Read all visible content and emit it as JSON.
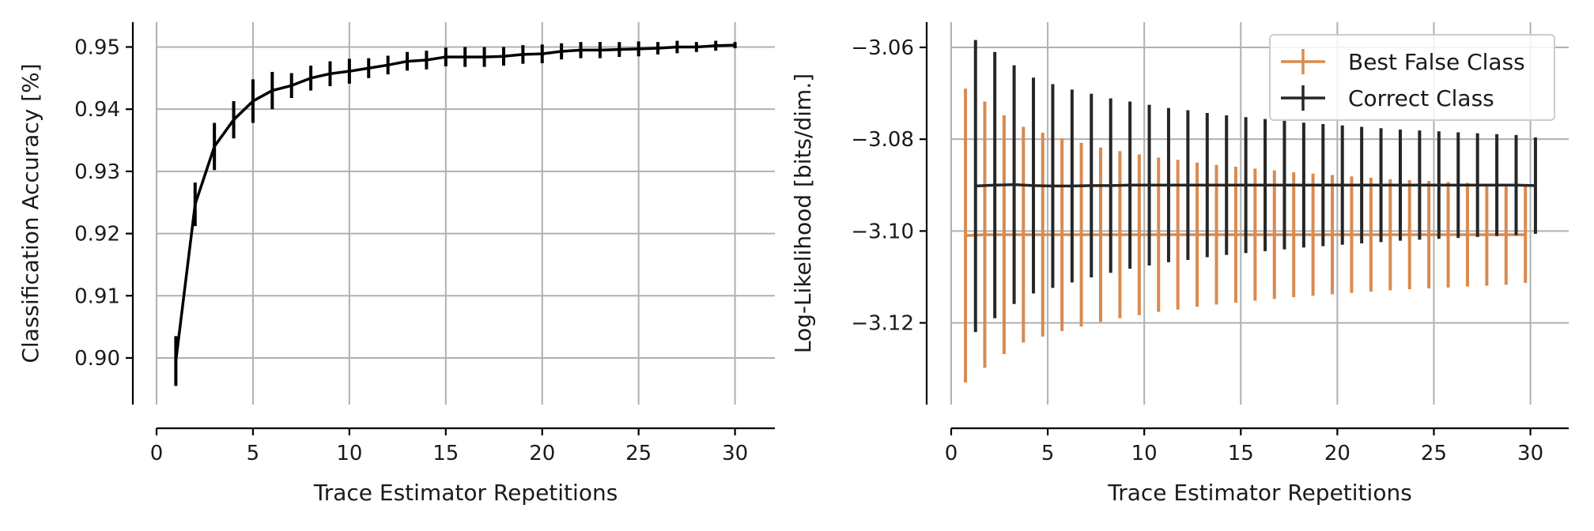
{
  "chart_data": [
    {
      "type": "line",
      "xlabel": "Trace Estimator Repetitions",
      "ylabel": "Classification Accuracy [%]",
      "xlim": [
        0,
        31
      ],
      "ylim": [
        0.8925,
        0.954
      ],
      "xticks": [
        0,
        5,
        10,
        15,
        20,
        25,
        30
      ],
      "yticks": [
        0.9,
        0.91,
        0.92,
        0.93,
        0.94,
        0.95
      ],
      "ytick_labels": [
        "0.90",
        "0.91",
        "0.92",
        "0.93",
        "0.94",
        "0.95"
      ],
      "grid": true,
      "colors": {
        "line": "#000000"
      },
      "series": [
        {
          "x": [
            1,
            2,
            3,
            4,
            5,
            6,
            7,
            8,
            9,
            10,
            11,
            12,
            13,
            14,
            15,
            16,
            17,
            18,
            19,
            20,
            21,
            22,
            23,
            24,
            25,
            26,
            27,
            28,
            29,
            30
          ],
          "y": [
            0.8995,
            0.9247,
            0.934,
            0.9383,
            0.9413,
            0.943,
            0.9438,
            0.945,
            0.9457,
            0.9461,
            0.9466,
            0.9471,
            0.9477,
            0.9479,
            0.9484,
            0.9484,
            0.9484,
            0.9485,
            0.9488,
            0.9489,
            0.9493,
            0.9495,
            0.9495,
            0.9496,
            0.9497,
            0.9498,
            0.95,
            0.95,
            0.9502,
            0.9503
          ],
          "err": [
            0.004,
            0.0035,
            0.0038,
            0.003,
            0.0035,
            0.003,
            0.002,
            0.002,
            0.002,
            0.002,
            0.0016,
            0.0015,
            0.0015,
            0.0015,
            0.0015,
            0.0016,
            0.0016,
            0.0015,
            0.0015,
            0.0015,
            0.0013,
            0.0013,
            0.0013,
            0.0012,
            0.0012,
            0.001,
            0.001,
            0.0008,
            0.0008,
            0.0005
          ]
        }
      ]
    },
    {
      "type": "line",
      "xlabel": "Trace Estimator Repetitions",
      "ylabel": "Log-Likelihood [bits/dim.]",
      "xlim": [
        0,
        31
      ],
      "ylim": [
        -3.1378,
        -3.0545
      ],
      "xticks": [
        0,
        5,
        10,
        15,
        20,
        25,
        30
      ],
      "yticks": [
        -3.06,
        -3.08,
        -3.1,
        -3.12
      ],
      "ytick_labels": [
        "−3.06",
        "−3.08",
        "−3.10",
        "−3.12"
      ],
      "grid": true,
      "legend_position": "top-right",
      "series": [
        {
          "name": "Best False Class",
          "color": "#d98a4f",
          "x": [
            1,
            2,
            3,
            4,
            5,
            6,
            7,
            8,
            9,
            10,
            11,
            12,
            13,
            14,
            15,
            16,
            17,
            18,
            19,
            20,
            21,
            22,
            23,
            24,
            25,
            26,
            27,
            28,
            29,
            30
          ],
          "y": [
            -3.101,
            -3.1008,
            -3.1008,
            -3.1008,
            -3.1008,
            -3.1008,
            -3.1008,
            -3.1008,
            -3.1008,
            -3.1008,
            -3.1008,
            -3.1008,
            -3.1008,
            -3.1008,
            -3.1008,
            -3.1008,
            -3.1008,
            -3.1008,
            -3.1008,
            -3.1008,
            -3.1008,
            -3.1008,
            -3.1008,
            -3.1008,
            -3.1008,
            -3.1008,
            -3.1008,
            -3.1008,
            -3.1008,
            -3.1008
          ],
          "err": [
            0.032,
            0.029,
            0.026,
            0.0235,
            0.0222,
            0.021,
            0.02,
            0.019,
            0.0182,
            0.0175,
            0.0168,
            0.0163,
            0.0157,
            0.0152,
            0.0148,
            0.0144,
            0.014,
            0.0136,
            0.0133,
            0.013,
            0.0127,
            0.0124,
            0.0121,
            0.0119,
            0.0117,
            0.0115,
            0.0113,
            0.0111,
            0.0109,
            0.0105
          ]
        },
        {
          "name": "Correct Class",
          "color": "#262626",
          "x": [
            1,
            2,
            3,
            4,
            5,
            6,
            7,
            8,
            9,
            10,
            11,
            12,
            13,
            14,
            15,
            16,
            17,
            18,
            19,
            20,
            21,
            22,
            23,
            24,
            25,
            26,
            27,
            28,
            29,
            30
          ],
          "y": [
            -3.0902,
            -3.09,
            -3.0899,
            -3.0901,
            -3.0902,
            -3.0902,
            -3.0901,
            -3.0901,
            -3.09,
            -3.09,
            -3.09,
            -3.09,
            -3.09,
            -3.09,
            -3.09,
            -3.09,
            -3.09,
            -3.09,
            -3.09,
            -3.09,
            -3.09,
            -3.09,
            -3.09,
            -3.09,
            -3.09,
            -3.09,
            -3.09,
            -3.09,
            -3.09,
            -3.0901
          ],
          "err": [
            0.0318,
            0.029,
            0.026,
            0.0235,
            0.0222,
            0.021,
            0.02,
            0.019,
            0.0182,
            0.0175,
            0.0168,
            0.0163,
            0.0157,
            0.0152,
            0.0148,
            0.0144,
            0.014,
            0.0136,
            0.0133,
            0.013,
            0.0127,
            0.0124,
            0.0121,
            0.0119,
            0.0117,
            0.0115,
            0.0113,
            0.0111,
            0.0109,
            0.0105
          ]
        }
      ]
    }
  ]
}
